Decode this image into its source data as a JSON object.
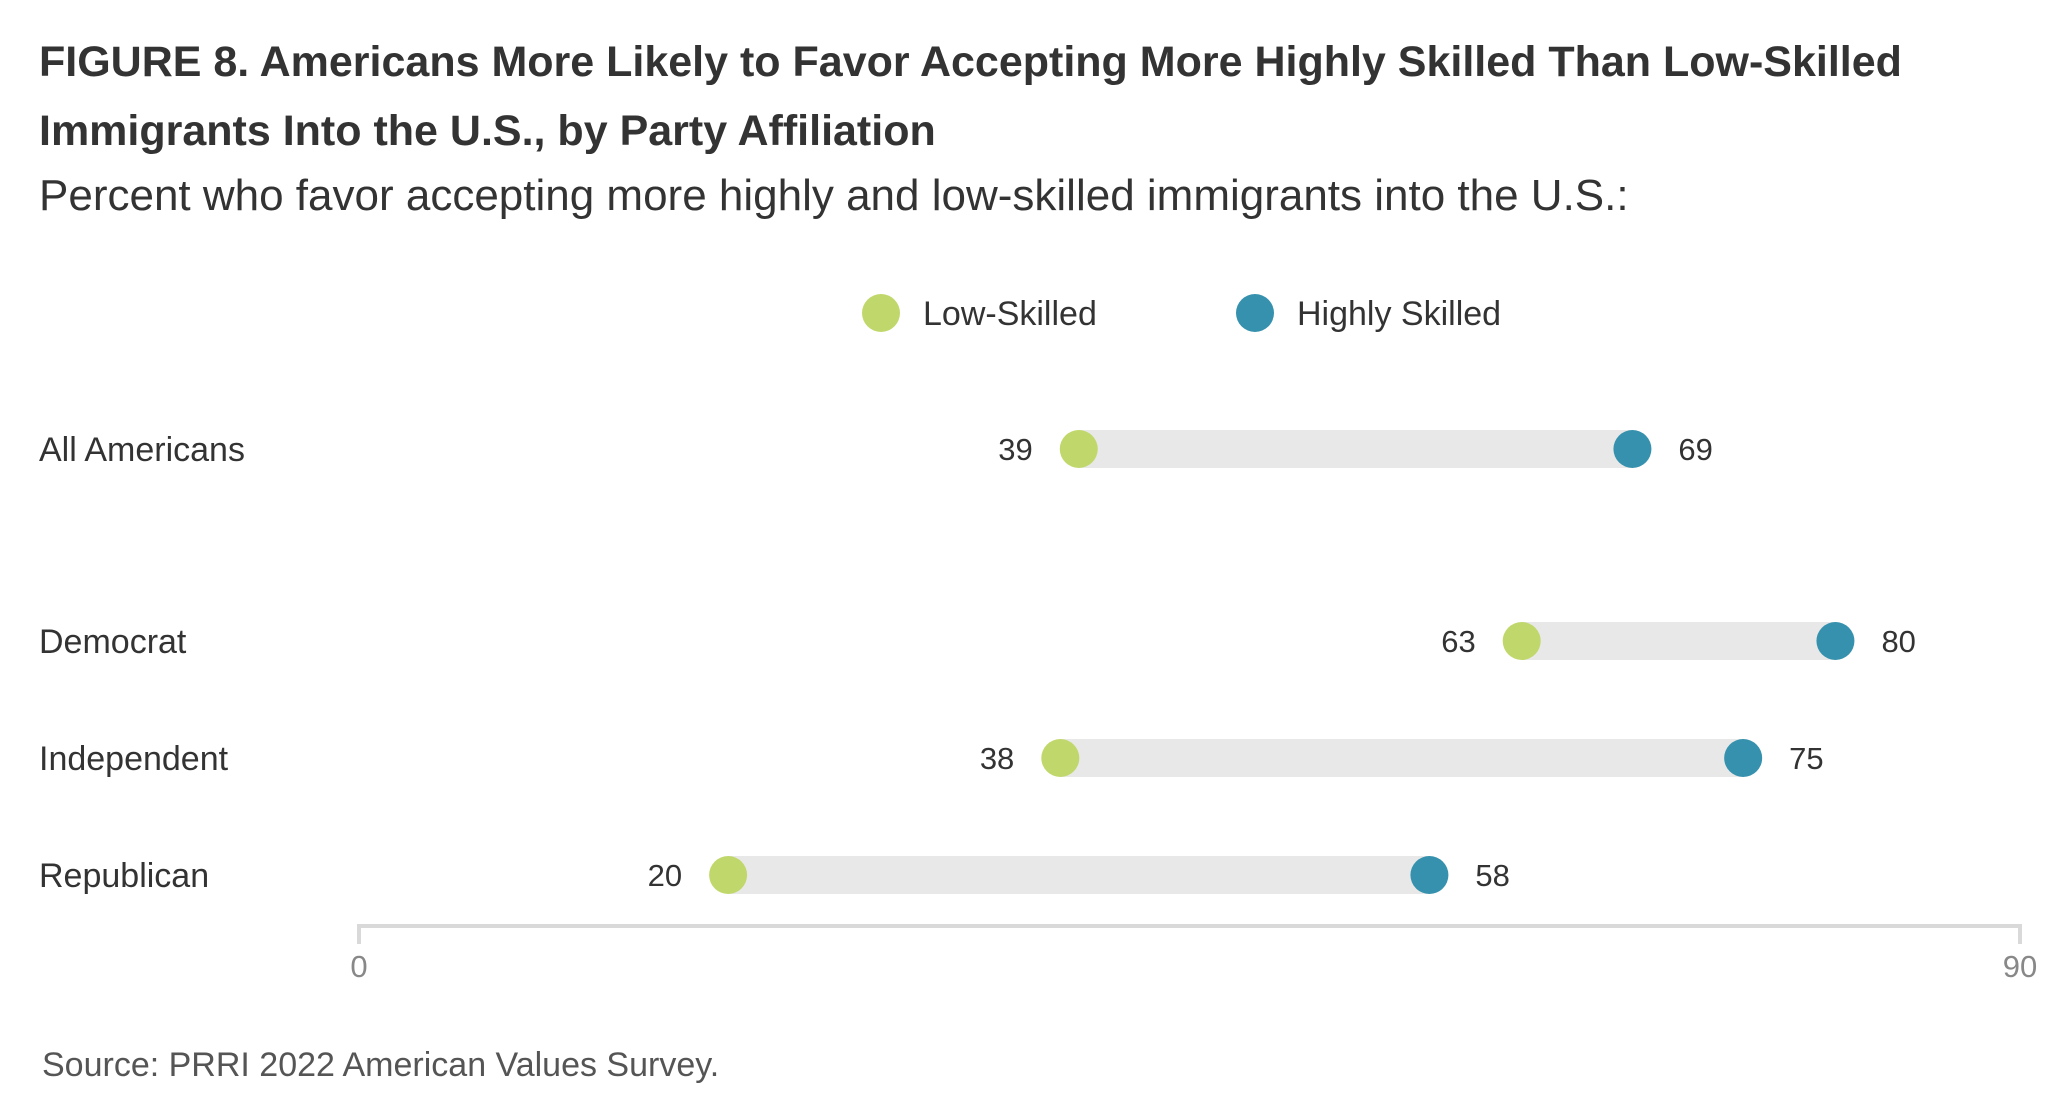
{
  "title": "FIGURE 8.  Americans More Likely to Favor Accepting More Highly Skilled Than Low-Skilled Immigrants Into the U.S., by Party Affiliation",
  "subtitle": "Percent who favor accepting more highly and low-skilled immigrants into the U.S.:",
  "source": "Source: PRRI 2022 American Values Survey.",
  "chart_data": {
    "type": "dumbbell",
    "title": "FIGURE 8.  Americans More Likely to Favor Accepting More Highly Skilled Than Low-Skilled Immigrants Into the U.S., by Party Affiliation",
    "subtitle": "Percent who favor accepting more highly and low-skilled immigrants into the U.S.:",
    "categories": [
      "All Americans",
      "Democrat",
      "Independent",
      "Republican"
    ],
    "series": [
      {
        "name": "Low-Skilled",
        "color": "#c0d86b",
        "values": [
          39,
          63,
          38,
          20
        ]
      },
      {
        "name": "Highly Skilled",
        "color": "#3591ad",
        "values": [
          69,
          80,
          75,
          58
        ]
      }
    ],
    "xlim": [
      0,
      90
    ],
    "xticks": [
      "0",
      "90"
    ],
    "legend_position": "top-center",
    "grid": false,
    "bar_color": "#e8e8e8",
    "axis_color": "#d9d9d9"
  }
}
